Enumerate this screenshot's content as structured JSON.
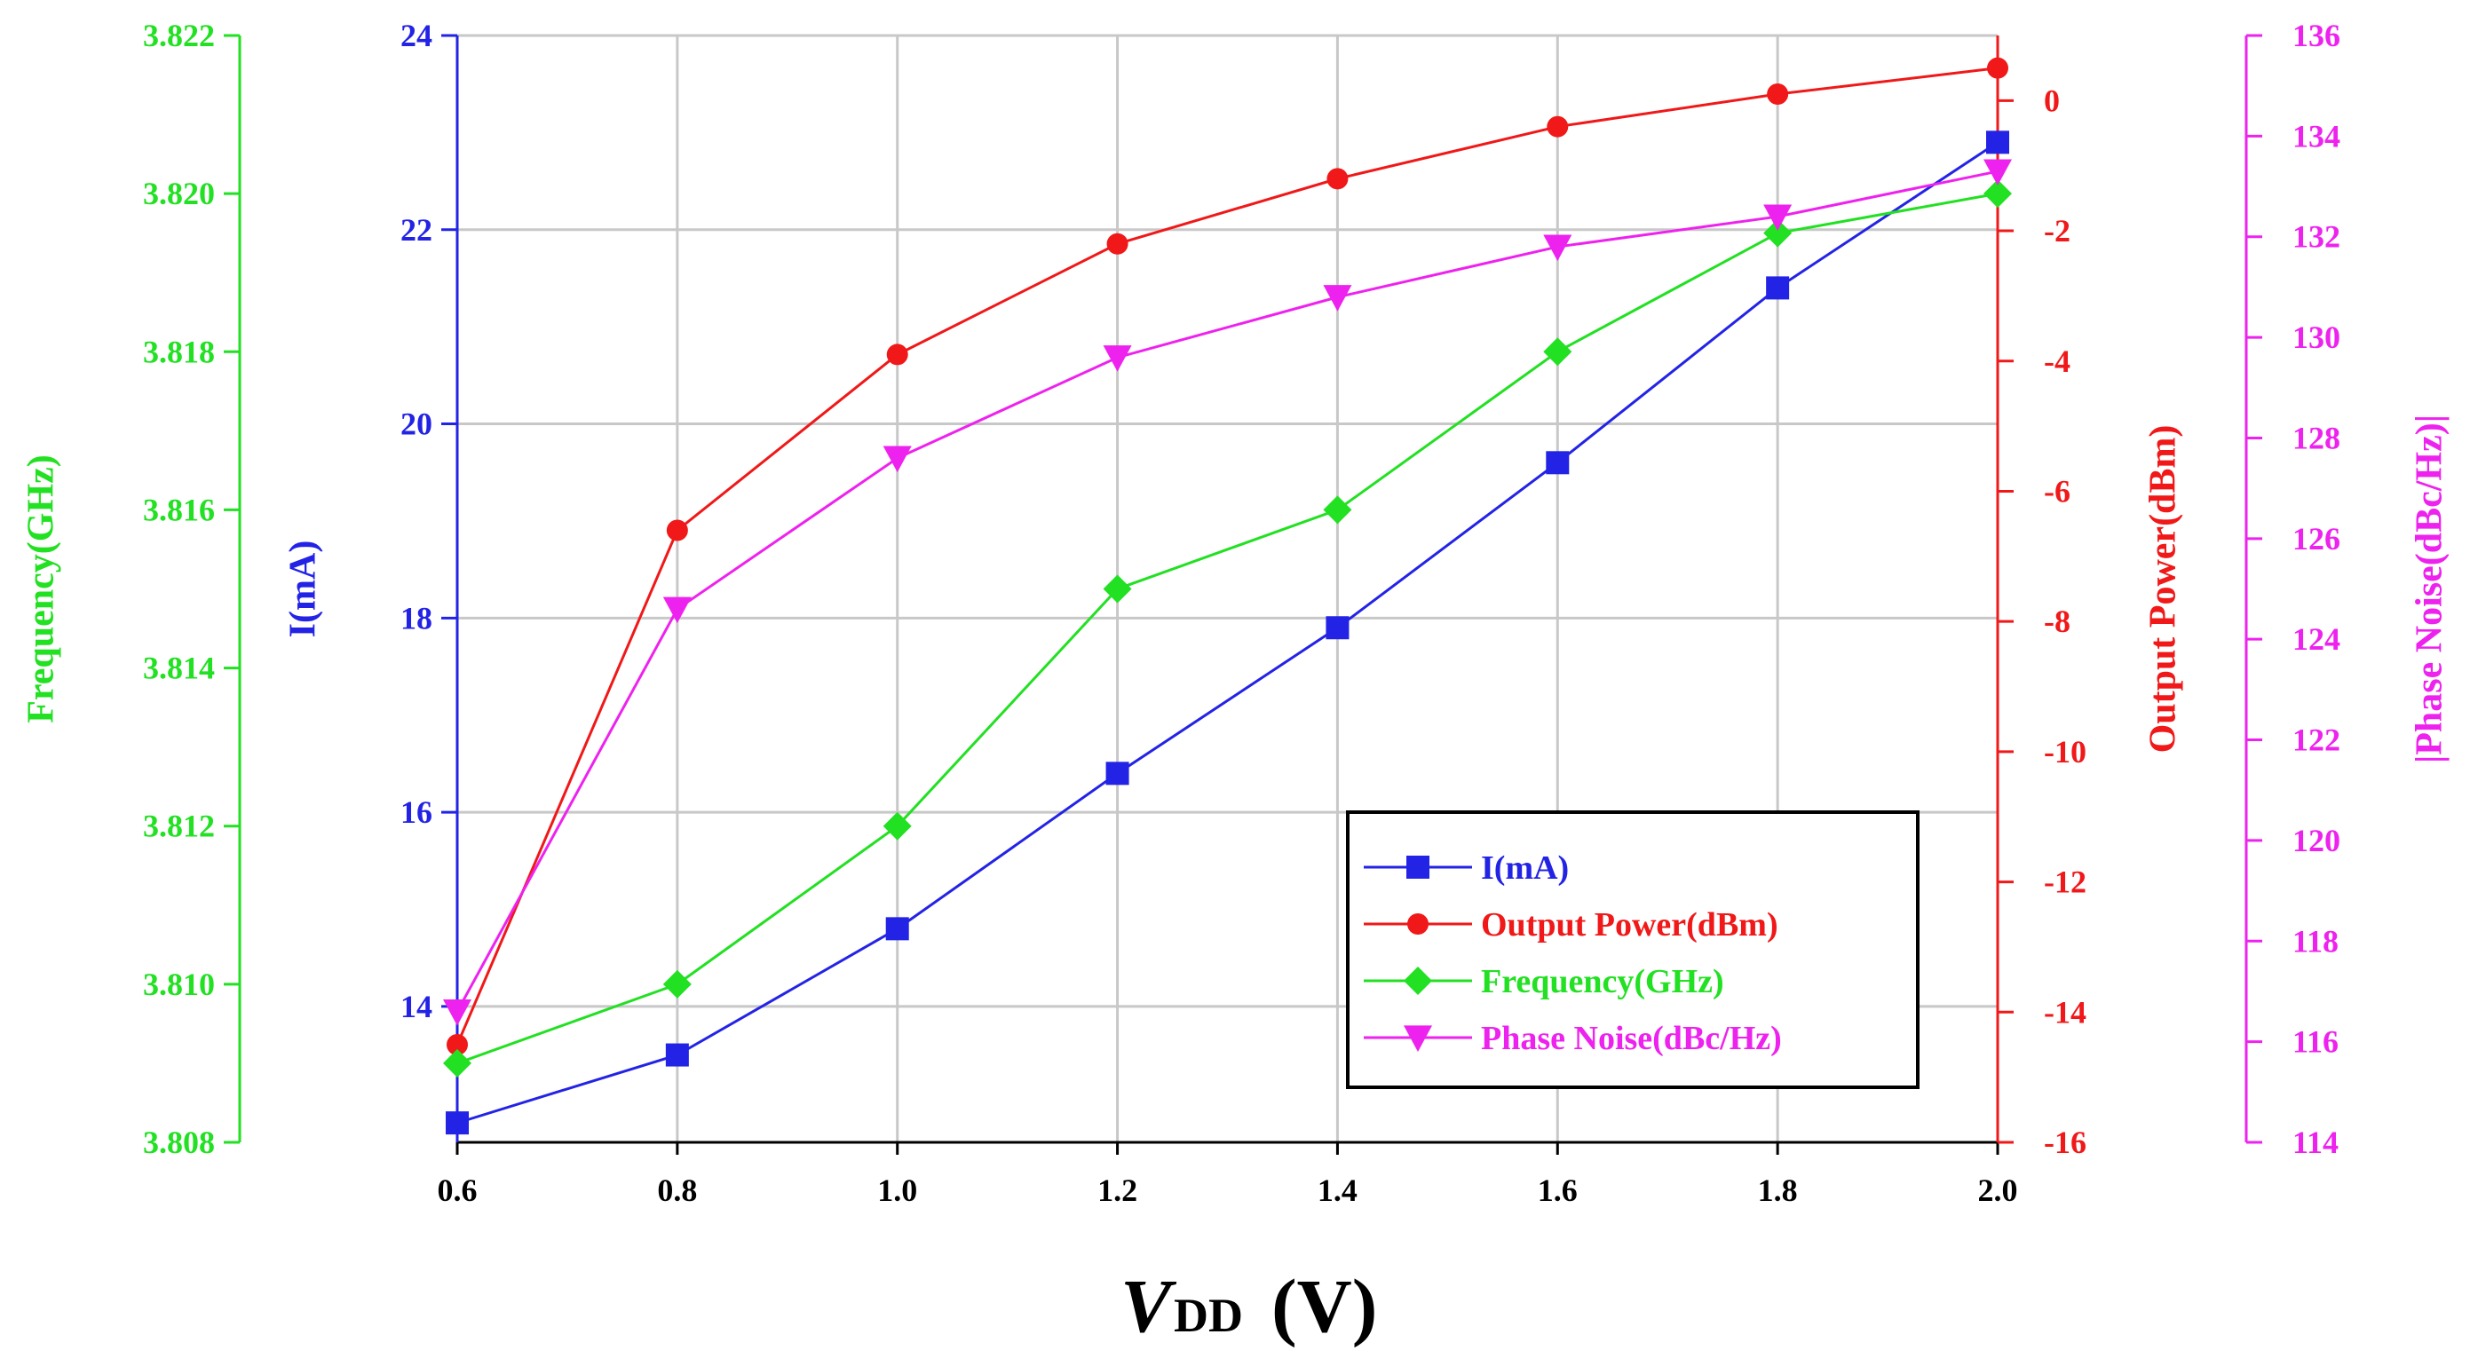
{
  "chart_data": {
    "type": "line",
    "x": [
      0.6,
      0.8,
      1.0,
      1.2,
      1.4,
      1.6,
      1.8,
      2.0
    ],
    "x_tick_labels": [
      "0.6",
      "0.8",
      "1.0",
      "1.2",
      "1.4",
      "1.6",
      "1.8",
      "2.0"
    ],
    "xlim": [
      0.6,
      2.0
    ],
    "xlabel": {
      "main": "V",
      "sub": "DD",
      "unit": "(V)"
    },
    "grid": true,
    "axes": [
      {
        "id": "current",
        "label": "I(mA)",
        "side": "left",
        "color": "#2323e6",
        "ylim": [
          12.6,
          24
        ],
        "ticks": [
          "14",
          "16",
          "18",
          "20",
          "22",
          "24"
        ],
        "tick_values": [
          14,
          16,
          18,
          20,
          22,
          24
        ]
      },
      {
        "id": "frequency",
        "label": "Frequency(GHz)",
        "side": "left-outer",
        "color": "#22e022",
        "ylim": [
          3.808,
          3.822
        ],
        "ticks": [
          "3.808",
          "3.810",
          "3.812",
          "3.814",
          "3.816",
          "3.818",
          "3.820",
          "3.822"
        ],
        "tick_values": [
          3.808,
          3.81,
          3.812,
          3.814,
          3.816,
          3.818,
          3.82,
          3.822
        ]
      },
      {
        "id": "power",
        "label": "Output Power(dBm)",
        "side": "right",
        "color": "#f01818",
        "ylim": [
          -16,
          1
        ],
        "ticks": [
          "-16",
          "-14",
          "-12",
          "-10",
          "-8",
          "-6",
          "-4",
          "-2",
          "0"
        ],
        "tick_values": [
          -16,
          -14,
          -12,
          -10,
          -8,
          -6,
          -4,
          -2,
          0
        ]
      },
      {
        "id": "phase",
        "label": "|Phase Noise(dBc/Hz)|",
        "side": "right-outer",
        "color": "#ee22ee",
        "ylim": [
          114,
          136
        ],
        "ticks": [
          "114",
          "116",
          "118",
          "120",
          "122",
          "124",
          "126",
          "128",
          "130",
          "132",
          "134",
          "136"
        ],
        "tick_values": [
          114,
          116,
          118,
          120,
          122,
          124,
          126,
          128,
          130,
          132,
          134,
          136
        ]
      }
    ],
    "series": [
      {
        "name": "I(mA)",
        "axis": "current",
        "color": "#2323e6",
        "marker": "square",
        "values": [
          12.8,
          13.5,
          14.8,
          16.4,
          17.9,
          19.6,
          21.4,
          22.9
        ]
      },
      {
        "name": "Output Power(dBm)",
        "axis": "power",
        "color": "#f01818",
        "marker": "circle",
        "values": [
          -14.5,
          -6.6,
          -3.9,
          -2.2,
          -1.2,
          -0.4,
          0.1,
          0.5
        ]
      },
      {
        "name": "Frequency(GHz)",
        "axis": "frequency",
        "color": "#22e022",
        "marker": "diamond",
        "values": [
          3.809,
          3.81,
          3.812,
          3.815,
          3.816,
          3.818,
          3.8195,
          3.82
        ]
      },
      {
        "name": "Phase Noise(dBc/Hz)",
        "axis": "phase",
        "color": "#ee22ee",
        "marker": "triangle-down",
        "values": [
          116.6,
          124.6,
          127.6,
          129.6,
          130.8,
          131.8,
          132.4,
          133.3
        ]
      }
    ],
    "legend": {
      "position": "lower-right",
      "entries": [
        "I(mA)",
        "Output Power(dBm)",
        "Frequency(GHz)",
        "Phase Noise(dBc/Hz)"
      ]
    }
  }
}
